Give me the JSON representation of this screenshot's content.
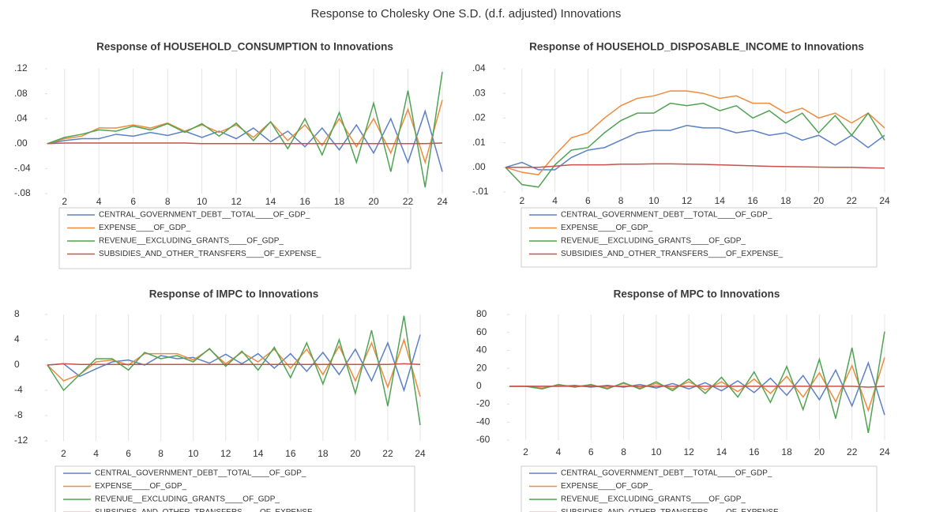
{
  "title": "Response to Cholesky One S.D. (d.f. adjusted) Innovations",
  "chart_data": [
    {
      "type": "line",
      "title": "Response of HOUSEHOLD_CONSUMPTION to Innovations",
      "x": [
        1,
        2,
        3,
        4,
        5,
        6,
        7,
        8,
        9,
        10,
        11,
        12,
        13,
        14,
        15,
        16,
        17,
        18,
        19,
        20,
        21,
        22,
        23,
        24
      ],
      "xlim": [
        1,
        24
      ],
      "xticks": [
        2,
        4,
        6,
        8,
        10,
        12,
        14,
        16,
        18,
        20,
        22,
        24
      ],
      "ylim": [
        -0.08,
        0.12
      ],
      "yticks": [
        {
          "value": 0.12,
          "label": ".12"
        },
        {
          "value": 0.08,
          "label": ".08"
        },
        {
          "value": 0.04,
          "label": ".04"
        },
        {
          "value": 0,
          "label": ".00"
        },
        {
          "value": -0.04,
          "label": "-.04"
        },
        {
          "value": -0.08,
          "label": "-.08"
        }
      ],
      "grid": true,
      "series": [
        {
          "name": "CENTRAL_GOVERNMENT_DEBT__TOTAL____OF_GDP_",
          "color": "#5b80c6",
          "values": [
            0,
            0.005,
            0.008,
            0.008,
            0.015,
            0.012,
            0.018,
            0.013,
            0.02,
            0.01,
            0.02,
            0.008,
            0.025,
            0.003,
            0.02,
            -0.005,
            0.025,
            -0.01,
            0.03,
            -0.015,
            0.04,
            -0.03,
            0.052,
            -0.045
          ]
        },
        {
          "name": "EXPENSE____OF_GDP_",
          "color": "#ed8b3f",
          "values": [
            0,
            0.008,
            0.012,
            0.025,
            0.025,
            0.03,
            0.025,
            0.033,
            0.02,
            0.03,
            0.018,
            0.03,
            0.01,
            0.035,
            0.005,
            0.03,
            -0.003,
            0.04,
            -0.005,
            0.04,
            -0.015,
            0.055,
            -0.03,
            0.07
          ]
        },
        {
          "name": "REVENUE__EXCLUDING_GRANTS____OF_GDP_",
          "color": "#4fa352",
          "values": [
            0,
            0.01,
            0.015,
            0.022,
            0.02,
            0.028,
            0.022,
            0.032,
            0.018,
            0.032,
            0.012,
            0.033,
            0.005,
            0.035,
            -0.008,
            0.04,
            -0.018,
            0.05,
            -0.03,
            0.065,
            -0.045,
            0.085,
            -0.07,
            0.115
          ]
        },
        {
          "name": "SUBSIDIES_AND_OTHER_TRANSFERS____OF_EXPENSE_",
          "color": "#c9504b",
          "values": [
            0,
            0.001,
            0.001,
            0.001,
            0.001,
            0.001,
            0.001,
            0.001,
            0.001,
            0,
            0,
            0,
            0,
            0,
            0,
            0,
            0,
            0,
            0,
            0,
            0,
            0,
            0,
            0.001
          ]
        }
      ]
    },
    {
      "type": "line",
      "title": "Response of HOUSEHOLD_DISPOSABLE_INCOME to Innovations",
      "x": [
        1,
        2,
        3,
        4,
        5,
        6,
        7,
        8,
        9,
        10,
        11,
        12,
        13,
        14,
        15,
        16,
        17,
        18,
        19,
        20,
        21,
        22,
        23,
        24
      ],
      "xlim": [
        1,
        24
      ],
      "xticks": [
        2,
        4,
        6,
        8,
        10,
        12,
        14,
        16,
        18,
        20,
        22,
        24
      ],
      "ylim": [
        -0.01,
        0.04
      ],
      "yticks": [
        {
          "value": 0.04,
          "label": ".04"
        },
        {
          "value": 0.03,
          "label": ".03"
        },
        {
          "value": 0.02,
          "label": ".02"
        },
        {
          "value": 0.01,
          "label": ".01"
        },
        {
          "value": 0,
          "label": ".00"
        },
        {
          "value": -0.01,
          "label": "-.01"
        }
      ],
      "grid": true,
      "series": [
        {
          "name": "CENTRAL_GOVERNMENT_DEBT__TOTAL____OF_GDP_",
          "color": "#5b80c6",
          "values": [
            0,
            0.002,
            -0.001,
            -0.001,
            0.004,
            0.007,
            0.008,
            0.011,
            0.014,
            0.015,
            0.015,
            0.017,
            0.016,
            0.016,
            0.014,
            0.015,
            0.013,
            0.014,
            0.011,
            0.013,
            0.009,
            0.013,
            0.008,
            0.013
          ]
        },
        {
          "name": "EXPENSE____OF_GDP_",
          "color": "#ed8b3f",
          "values": [
            0,
            -0.002,
            -0.003,
            0.005,
            0.012,
            0.014,
            0.02,
            0.025,
            0.028,
            0.029,
            0.031,
            0.031,
            0.03,
            0.028,
            0.029,
            0.026,
            0.026,
            0.022,
            0.024,
            0.02,
            0.022,
            0.018,
            0.022,
            0.016
          ]
        },
        {
          "name": "REVENUE__EXCLUDING_GRANTS____OF_GDP_",
          "color": "#4fa352",
          "values": [
            0,
            -0.007,
            -0.008,
            0.001,
            0.007,
            0.008,
            0.014,
            0.019,
            0.022,
            0.022,
            0.026,
            0.025,
            0.026,
            0.023,
            0.025,
            0.02,
            0.023,
            0.018,
            0.022,
            0.014,
            0.021,
            0.013,
            0.022,
            0.011
          ]
        },
        {
          "name": "SUBSIDIES_AND_OTHER_TRANSFERS____OF_EXPENSE_",
          "color": "#c9504b",
          "values": [
            0,
            0,
            0,
            0.0005,
            0.001,
            0.001,
            0.001,
            0.0013,
            0.0013,
            0.0014,
            0.0014,
            0.0013,
            0.0012,
            0.001,
            0.0008,
            0.0006,
            0.0004,
            0.0003,
            0.0002,
            0.0001,
            0,
            0,
            -0.0002,
            -0.0003
          ]
        }
      ]
    },
    {
      "type": "line",
      "title": "Response of IMPC to Innovations",
      "x": [
        1,
        2,
        3,
        4,
        5,
        6,
        7,
        8,
        9,
        10,
        11,
        12,
        13,
        14,
        15,
        16,
        17,
        18,
        19,
        20,
        21,
        22,
        23,
        24
      ],
      "xlim": [
        1,
        24
      ],
      "xticks": [
        2,
        4,
        6,
        8,
        10,
        12,
        14,
        16,
        18,
        20,
        22,
        24
      ],
      "ylim": [
        -12,
        8
      ],
      "yticks": [
        8,
        4,
        0,
        -4,
        -8,
        -12
      ],
      "grid": true,
      "series": [
        {
          "name": "CENTRAL_GOVERNMENT_DEBT__TOTAL____OF_GDP_",
          "color": "#5b80c6",
          "values": [
            0,
            0.2,
            -1.8,
            -0.6,
            0.5,
            0.8,
            0,
            1.5,
            1,
            1.2,
            0.3,
            1.7,
            0.2,
            1.8,
            -0.5,
            1.8,
            -1,
            2,
            -1.5,
            2.5,
            -2.5,
            3.5,
            -4,
            4.8
          ]
        },
        {
          "name": "EXPENSE____OF_GDP_",
          "color": "#ed8b3f",
          "values": [
            0,
            -2.5,
            -1.5,
            0.5,
            0.8,
            0,
            1.8,
            1.8,
            1.8,
            0.8,
            2.5,
            0.2,
            2,
            0.5,
            2.5,
            -0.5,
            2.5,
            -1.5,
            3,
            -2.5,
            3.5,
            -3.5,
            4,
            -5
          ]
        },
        {
          "name": "REVENUE__EXCLUDING_GRANTS____OF_GDP_",
          "color": "#4fa352",
          "values": [
            0,
            -4,
            -1.5,
            1,
            1,
            -0.8,
            2,
            1,
            1.5,
            0.5,
            2.6,
            -0.2,
            2.2,
            -0.8,
            2.8,
            -2,
            3.5,
            -3,
            4,
            -4.5,
            5.5,
            -6.5,
            7.8,
            -9.5
          ]
        },
        {
          "name": "SUBSIDIES_AND_OTHER_TRANSFERS____OF_EXPENSE_",
          "color": "#c9504b",
          "values": [
            0,
            0.2,
            0.1,
            0.1,
            0.1,
            0.1,
            0.1,
            0.1,
            0.1,
            0.1,
            0.1,
            0.1,
            0.1,
            0.1,
            0.1,
            0.1,
            0.1,
            0.1,
            0.1,
            0.1,
            0.1,
            0.1,
            0.2,
            0.1
          ]
        }
      ]
    },
    {
      "type": "line",
      "title": "Response of MPC to Innovations",
      "x": [
        1,
        2,
        3,
        4,
        5,
        6,
        7,
        8,
        9,
        10,
        11,
        12,
        13,
        14,
        15,
        16,
        17,
        18,
        19,
        20,
        21,
        22,
        23,
        24
      ],
      "xlim": [
        1,
        24
      ],
      "xticks": [
        2,
        4,
        6,
        8,
        10,
        12,
        14,
        16,
        18,
        20,
        22,
        24
      ],
      "ylim": [
        -60,
        80
      ],
      "yticks": [
        80,
        60,
        40,
        20,
        0,
        -20,
        -40,
        -60
      ],
      "grid": true,
      "series": [
        {
          "name": "CENTRAL_GOVERNMENT_DEBT__TOTAL____OF_GDP_",
          "color": "#5b80c6",
          "values": [
            0,
            0,
            0,
            0,
            1,
            -1,
            1,
            -1,
            2,
            -2,
            3,
            -3,
            4,
            -5,
            6,
            -7,
            9,
            -10,
            12,
            -15,
            18,
            -22,
            26,
            -32
          ]
        },
        {
          "name": "EXPENSE____OF_GDP_",
          "color": "#ed8b3f",
          "values": [
            0,
            0,
            -2,
            1,
            0,
            1,
            -2,
            3,
            -2,
            3,
            -3,
            5,
            -4,
            5,
            -6,
            8,
            -8,
            11,
            -12,
            15,
            -17,
            23,
            -27,
            32
          ]
        },
        {
          "name": "REVENUE__EXCLUDING_GRANTS____OF_GDP_",
          "color": "#4fa352",
          "values": [
            0,
            0,
            -3,
            2,
            -1,
            2,
            -3,
            4,
            -3,
            5,
            -5,
            8,
            -8,
            10,
            -12,
            16,
            -18,
            22,
            -26,
            30,
            -36,
            43,
            -52,
            61
          ]
        },
        {
          "name": "SUBSIDIES_AND_OTHER_TRANSFERS____OF_EXPENSE_",
          "color": "#c9504b",
          "values": [
            0,
            0,
            0,
            0,
            0,
            0,
            0,
            0,
            0,
            0,
            0,
            0,
            0,
            0,
            0,
            0,
            0,
            0,
            0,
            0,
            0,
            0,
            -1,
            0
          ]
        }
      ]
    }
  ]
}
